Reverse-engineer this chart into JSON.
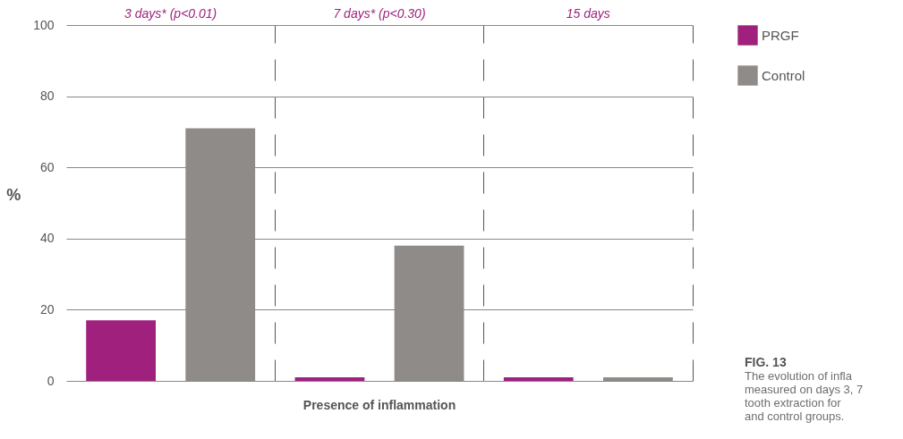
{
  "chart_data": {
    "type": "bar",
    "categories": [
      "3 days* (p<0.01)",
      "7 days* (p<0.30)",
      "15 days"
    ],
    "series": [
      {
        "name": "PRGF",
        "color": "#a0207e",
        "values": [
          17,
          1,
          1
        ]
      },
      {
        "name": "Control",
        "color": "#8e8b88",
        "values": [
          71,
          38,
          1
        ]
      }
    ],
    "ylabel": "%",
    "xlabel": "Presence of inflammation",
    "ylim": [
      0,
      100
    ],
    "yticks": [
      0,
      20,
      40,
      60,
      80,
      100
    ],
    "grid": true,
    "legend": "top right",
    "annotations": [
      "FIG. 13",
      "The evolution of infla",
      "measured on days 3, 7",
      "tooth extraction for",
      "and control groups."
    ]
  }
}
